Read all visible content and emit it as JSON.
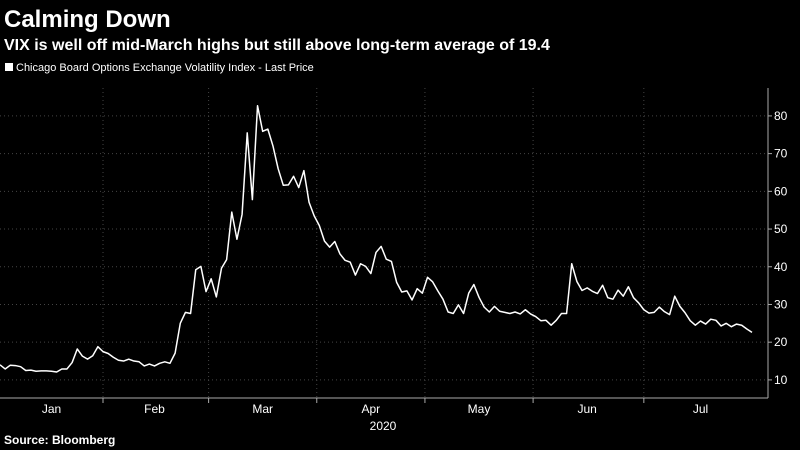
{
  "chart_data": {
    "type": "line",
    "title": "Calming Down",
    "subtitle": "VIX is well off mid-March highs but still above long-term average of 19.4",
    "x_axis_label": "2020",
    "source": "Source: Bloomberg",
    "categories": [
      null,
      null,
      null,
      null,
      null,
      null,
      null,
      null,
      null,
      null,
      "Jan",
      null,
      null,
      null,
      null,
      null,
      null,
      null,
      null,
      null,
      null,
      null,
      null,
      null,
      null,
      null,
      null,
      null,
      null,
      null,
      "Feb",
      null,
      null,
      null,
      null,
      null,
      null,
      null,
      null,
      null,
      null,
      null,
      null,
      null,
      null,
      null,
      null,
      null,
      null,
      null,
      null,
      "Mar",
      null,
      null,
      null,
      null,
      null,
      null,
      null,
      null,
      null,
      null,
      null,
      null,
      null,
      null,
      null,
      null,
      null,
      null,
      null,
      null,
      "Apr",
      null,
      null,
      null,
      null,
      null,
      null,
      null,
      null,
      null,
      null,
      null,
      null,
      null,
      null,
      null,
      null,
      null,
      null,
      null,
      null,
      "May",
      null,
      null,
      null,
      null,
      null,
      null,
      null,
      null,
      null,
      null,
      null,
      null,
      null,
      null,
      null,
      null,
      null,
      null,
      null,
      null,
      "Jun",
      null,
      null,
      null,
      null,
      null,
      null,
      null,
      null,
      null,
      null,
      null,
      null,
      null,
      null,
      null,
      null,
      null,
      null,
      null,
      null,
      null,
      "Jul",
      null,
      null,
      null,
      null,
      null,
      null,
      null,
      null,
      null,
      null
    ],
    "series": [
      {
        "name": "Chicago Board Options Exchange Volatility Index - Last Price",
        "color": "#ffffff",
        "values": [
          14.0,
          12.9,
          13.9,
          13.8,
          13.5,
          12.5,
          12.6,
          12.3,
          12.4,
          12.4,
          12.3,
          12.1,
          12.9,
          12.9,
          14.6,
          18.2,
          16.3,
          15.5,
          16.4,
          18.8,
          17.5,
          17.0,
          16.0,
          15.2,
          15.0,
          15.5,
          15.0,
          14.8,
          13.7,
          14.2,
          13.7,
          14.4,
          14.8,
          14.4,
          17.1,
          25.0,
          27.9,
          27.6,
          39.2,
          40.1,
          33.4,
          36.8,
          32.0,
          39.6,
          41.9,
          54.5,
          47.3,
          53.9,
          75.5,
          57.8,
          82.7,
          75.9,
          76.5,
          72.0,
          66.0,
          61.6,
          61.7,
          64.0,
          61.0,
          65.5,
          57.1,
          53.5,
          50.9,
          46.8,
          45.2,
          46.7,
          43.4,
          41.7,
          41.2,
          37.8,
          40.8,
          40.1,
          38.2,
          43.8,
          45.4,
          42.0,
          41.4,
          35.9,
          33.3,
          33.6,
          31.2,
          34.2,
          33.0,
          37.2,
          36.0,
          33.6,
          31.4,
          28.0,
          27.6,
          29.9,
          27.6,
          33.0,
          35.3,
          31.9,
          29.3,
          28.0,
          29.5,
          28.2,
          27.9,
          27.6,
          28.0,
          27.5,
          28.6,
          27.5,
          26.8,
          25.7,
          25.8,
          24.5,
          25.8,
          27.6,
          27.6,
          40.8,
          36.1,
          33.7,
          34.4,
          33.5,
          32.9,
          35.1,
          31.8,
          31.4,
          33.8,
          32.2,
          34.7,
          31.8,
          30.4,
          28.6,
          27.7,
          27.9,
          29.3,
          28.1,
          27.3,
          32.2,
          29.5,
          27.8,
          25.7,
          24.5,
          25.6,
          24.8,
          26.1,
          25.8,
          24.3,
          25.0,
          24.1,
          24.8,
          24.5,
          23.5,
          22.6
        ]
      }
    ],
    "ylim": [
      5.2,
      87.4
    ],
    "yticks": [
      10,
      20,
      30,
      40,
      50,
      60,
      70,
      80
    ],
    "grid": true
  }
}
